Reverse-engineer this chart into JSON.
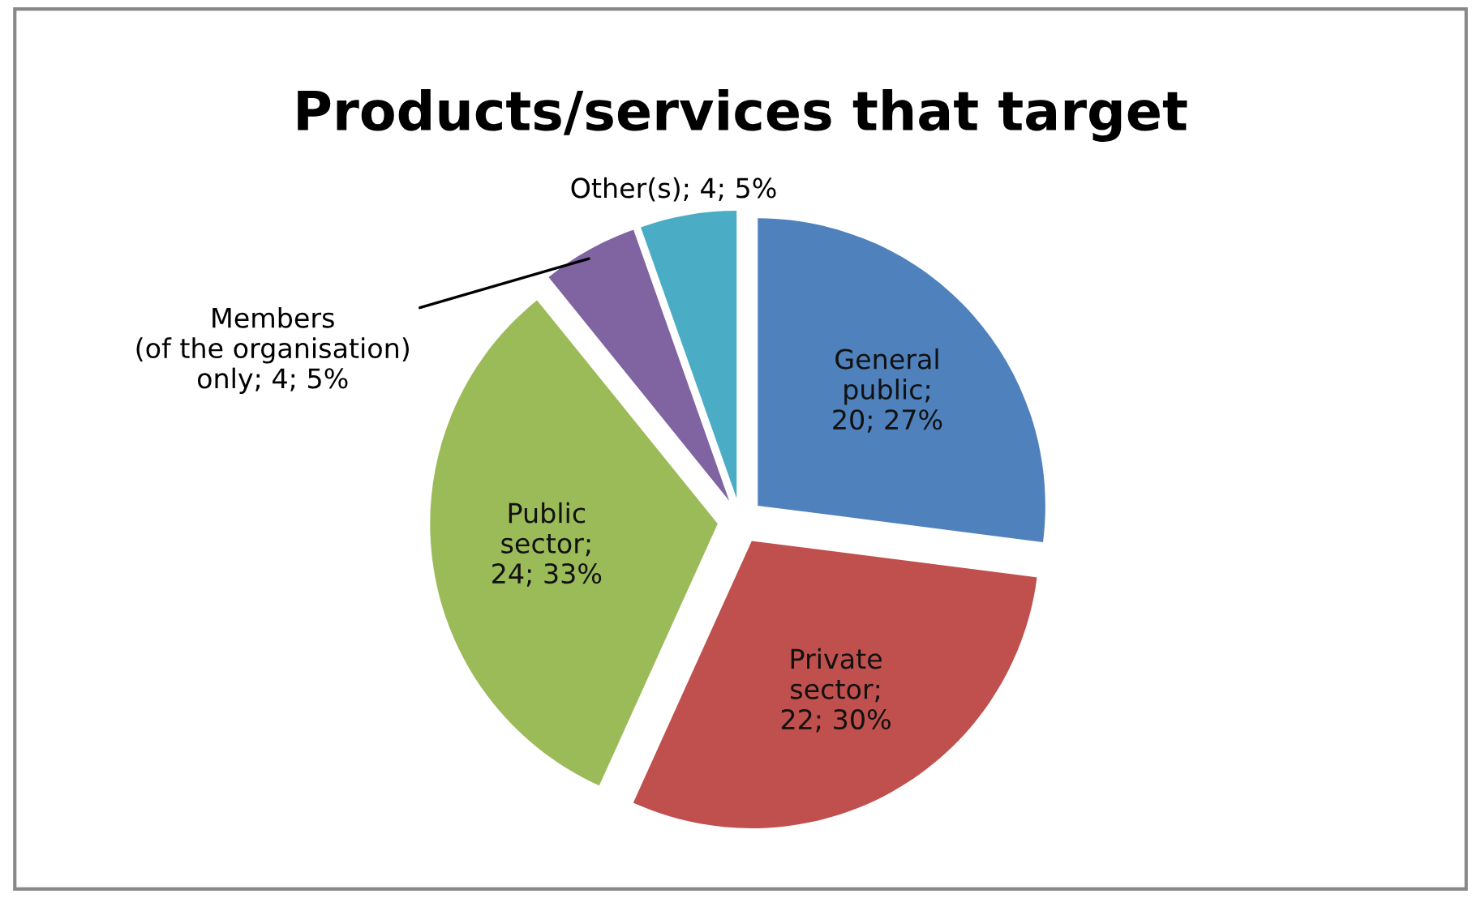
{
  "chart_data": {
    "type": "pie",
    "title": "Products/services that target",
    "categories": [
      "General public; 20; 27%",
      "Private sector; 22; 30%",
      "Public sector; 24; 33%",
      "Members (of the organisation) only; 4; 5%",
      "Other(s); 4; 5%"
    ],
    "values": [
      20,
      22,
      24,
      4,
      4
    ],
    "colors": [
      "#4f81bd",
      "#c0504d",
      "#9bbb59",
      "#8064a2",
      "#4bacc6"
    ],
    "legend": false
  }
}
